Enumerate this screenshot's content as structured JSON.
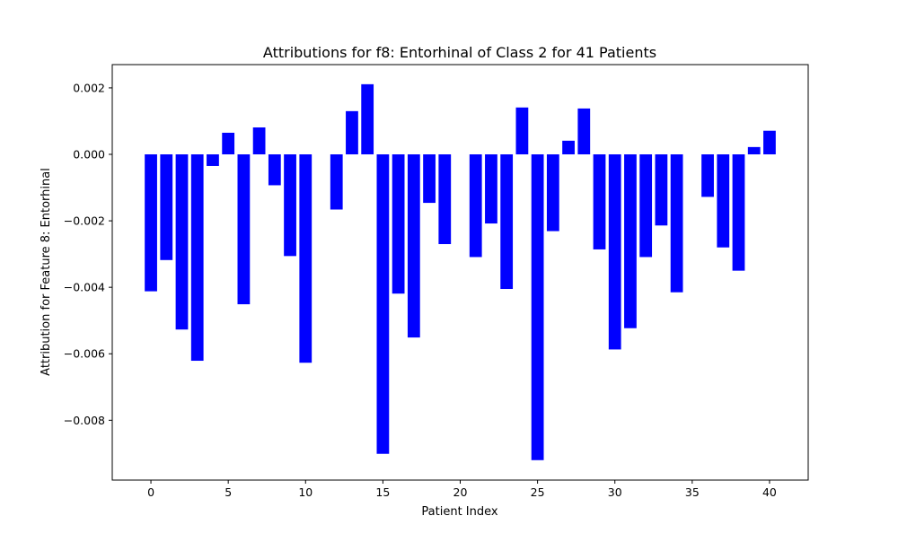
{
  "chart_data": {
    "type": "bar",
    "title": "Attributions for f8: Entorhinal of Class 2 for 41 Patients",
    "xlabel": "Patient Index",
    "ylabel": "Attribution for Feature 8: Entorhinal",
    "x": [
      0,
      1,
      2,
      3,
      4,
      5,
      6,
      7,
      8,
      9,
      10,
      11,
      12,
      13,
      14,
      15,
      16,
      17,
      18,
      19,
      20,
      21,
      22,
      23,
      24,
      25,
      26,
      27,
      28,
      29,
      30,
      31,
      32,
      33,
      34,
      35,
      36,
      37,
      38,
      39,
      40
    ],
    "values": [
      -0.00412,
      -0.00318,
      -0.00527,
      -0.00621,
      -0.00035,
      0.00065,
      -0.00451,
      0.00081,
      -0.00093,
      -0.00306,
      -0.00627,
      0.0,
      -0.00166,
      0.0013,
      0.00211,
      -0.00901,
      -0.00419,
      -0.00551,
      -0.00146,
      -0.0027,
      0.0,
      -0.00309,
      -0.00208,
      -0.00405,
      0.00141,
      -0.0092,
      -0.00231,
      0.00041,
      0.00138,
      -0.00286,
      -0.00587,
      -0.00523,
      -0.00309,
      -0.00214,
      -0.00415,
      0.0,
      -0.00128,
      -0.0028,
      -0.0035,
      0.00022,
      0.00071
    ],
    "xlim": [
      -2.5,
      42.5
    ],
    "ylim": [
      -0.0098,
      0.0027
    ],
    "xticks": [
      0,
      5,
      10,
      15,
      20,
      25,
      30,
      35,
      40
    ],
    "xtick_labels": [
      "0",
      "5",
      "10",
      "15",
      "20",
      "25",
      "30",
      "35",
      "40"
    ],
    "yticks": [
      0.002,
      0.0,
      -0.002,
      -0.004,
      -0.006,
      -0.008
    ],
    "ytick_labels": [
      "0.002",
      "0.000",
      "−0.002",
      "−0.004",
      "−0.006",
      "−0.008"
    ],
    "bar_color": "#0000ff",
    "grid": false,
    "legend": "none"
  }
}
